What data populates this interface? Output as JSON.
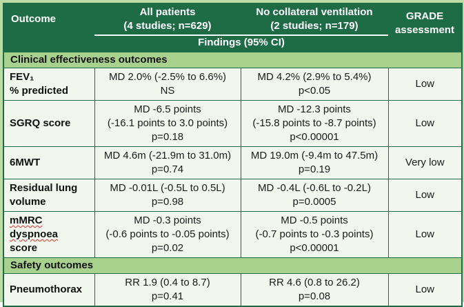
{
  "colors": {
    "header_green": "#1E6C46",
    "section_green": "#A9D18E",
    "cell_background": "#F1F7ED",
    "outer_frame_green": "#BEDAA5",
    "border_green": "#1E6C46",
    "header_text": "#FFFFFF",
    "body_text": "#1A1A1A",
    "spellcheck_red": "#E03030"
  },
  "table": {
    "columns": {
      "outcome": "Outcome",
      "all_patients": "All patients\n(4 studies; n=629)",
      "no_collateral": "No collateral ventilation\n(2 studies; n=179)",
      "grade": "GRADE\nassessment"
    },
    "findings_header": "Findings (95% CI)",
    "misspelled_words": [
      "mMRC",
      "dyspnoea"
    ],
    "sections": [
      {
        "title": "Clinical effectiveness outcomes",
        "rows": [
          {
            "outcome_lines": [
              "FEV₁",
              "% predicted"
            ],
            "all_patients_lines": [
              "MD 2.0% (-2.5% to 6.6%)",
              "NS"
            ],
            "no_collateral_lines": [
              "MD 4.2% (2.9% to 5.4%)",
              "p<0.05"
            ],
            "grade": "Low"
          },
          {
            "outcome_lines": [
              "SGRQ score"
            ],
            "all_patients_lines": [
              "MD -6.5 points",
              "(-16.1 points to 3.0 points)",
              "p=0.18"
            ],
            "no_collateral_lines": [
              "MD -12.3 points",
              "(-15.8 points to -8.7 points)",
              "p<0.00001"
            ],
            "grade": "Low"
          },
          {
            "outcome_lines": [
              "6MWT"
            ],
            "all_patients_lines": [
              "MD 4.6m (-21.9m to 31.0m)",
              "p=0.74"
            ],
            "no_collateral_lines": [
              "MD 19.0m (-9.4m to 47.5m)",
              "p=0.19"
            ],
            "grade": "Very low"
          },
          {
            "outcome_lines": [
              "Residual lung",
              "volume"
            ],
            "all_patients_lines": [
              "MD -0.01L (-0.5L to 0.5L)",
              "p=0.98"
            ],
            "no_collateral_lines": [
              "MD -0.4L (-0.6L to -0.2L)",
              "p=0.0005"
            ],
            "grade": "Low"
          },
          {
            "outcome_lines": [
              "mMRC",
              "dyspnoea",
              "score"
            ],
            "all_patients_lines": [
              "MD -0.3 points",
              "(-0.6 points to -0.05 points)",
              "p=0.02"
            ],
            "no_collateral_lines": [
              "MD -0.5 points",
              "(-0.7 points to -0.3 points)",
              "p<0.00001"
            ],
            "grade": "Low"
          }
        ]
      },
      {
        "title": "Safety outcomes",
        "rows": [
          {
            "outcome_lines": [
              "Pneumothorax"
            ],
            "all_patients_lines": [
              "RR 1.9 (0.4 to 8.7)",
              "p=0.41"
            ],
            "no_collateral_lines": [
              "RR 4.6 (0.8 to 26.2)",
              "p=0.08"
            ],
            "grade": "Low"
          }
        ]
      }
    ]
  }
}
